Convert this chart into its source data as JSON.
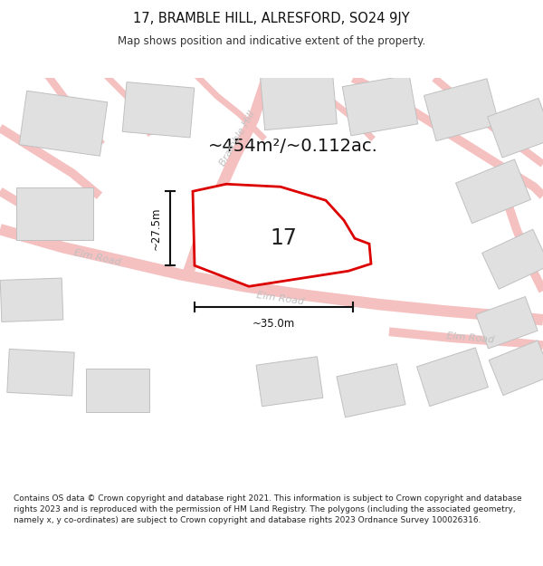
{
  "title": "17, BRAMBLE HILL, ALRESFORD, SO24 9JY",
  "subtitle": "Map shows position and indicative extent of the property.",
  "area_text": "~454m²/~0.112ac.",
  "number_label": "17",
  "dim_height": "~27.5m",
  "dim_width": "~35.0m",
  "road_label_bramble": "Bramble Hill",
  "road_label_elm1": "Elm Road",
  "road_label_elm2": "Elm Road",
  "road_label_elm3": "Elm Road",
  "footer_text": "Contains OS data © Crown copyright and database right 2021. This information is subject to Crown copyright and database rights 2023 and is reproduced with the permission of HM Land Registry. The polygons (including the associated geometry, namely x, y co-ordinates) are subject to Crown copyright and database rights 2023 Ordnance Survey 100026316.",
  "bg_color": "#ffffff",
  "map_bg": "#ffffff",
  "building_fill": "#e0e0e0",
  "building_edge": "#c0c0c0",
  "road_color": "#f5c0c0",
  "property_stroke": "#dd0000",
  "property_fill": "#ffffff",
  "dim_color": "#111111",
  "title_color": "#111111",
  "subtitle_color": "#333333",
  "road_text_color": "#c0c0c0",
  "area_text_color": "#111111",
  "footer_color": "#222222"
}
